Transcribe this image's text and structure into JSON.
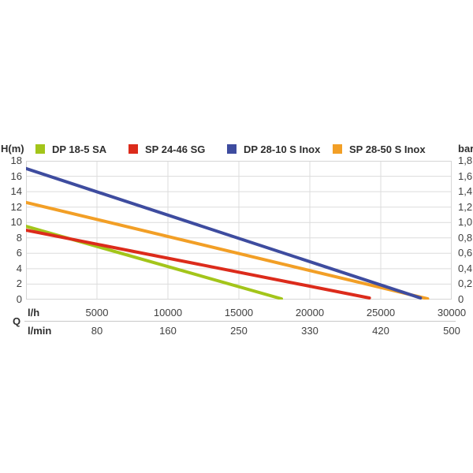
{
  "theme": {
    "background": "#ffffff",
    "grid_color": "#dcdcdc",
    "plot_border_color": "#d6d6d6",
    "divider_color": "#c8c8c8",
    "text_color": "#3f3f3f",
    "label_color": "#2e2e2e"
  },
  "chart_data": {
    "type": "line",
    "title": "",
    "legend_position": "top",
    "grid": true,
    "left_axis_unit": "H(m)",
    "right_axis_unit": "bar",
    "x_axis": {
      "primary_unit": "l/h",
      "secondary_unit": "l/min",
      "corner_label": "Q",
      "min": 0,
      "max": 30000,
      "ticks": [
        {
          "value": 5000,
          "lh": "5000",
          "lmin": "80"
        },
        {
          "value": 10000,
          "lh": "10000",
          "lmin": "160"
        },
        {
          "value": 15000,
          "lh": "15000",
          "lmin": "250"
        },
        {
          "value": 20000,
          "lh": "20000",
          "lmin": "330"
        },
        {
          "value": 25000,
          "lh": "25000",
          "lmin": "420"
        },
        {
          "value": 30000,
          "lh": "30000",
          "lmin": "500"
        }
      ]
    },
    "y_axis_left": {
      "unit": "H(m)",
      "min": 0,
      "max": 18,
      "step": 2,
      "ticks": [
        {
          "label": "18",
          "value": 18
        },
        {
          "label": "16",
          "value": 16
        },
        {
          "label": "14",
          "value": 14
        },
        {
          "label": "12",
          "value": 12
        },
        {
          "label": "10",
          "value": 10
        },
        {
          "label": "8",
          "value": 8
        },
        {
          "label": "6",
          "value": 6
        },
        {
          "label": "4",
          "value": 4
        },
        {
          "label": "2",
          "value": 2
        },
        {
          "label": "0",
          "value": 0
        }
      ]
    },
    "y_axis_right": {
      "unit": "bar",
      "min": 0,
      "max": 1.8,
      "step": 0.2,
      "ticks": [
        {
          "label": "1,8",
          "value": 18
        },
        {
          "label": "1,6",
          "value": 16
        },
        {
          "label": "1,4",
          "value": 14
        },
        {
          "label": "1,2",
          "value": 12
        },
        {
          "label": "1,0",
          "value": 10
        },
        {
          "label": "0,8",
          "value": 8
        },
        {
          "label": "0,6",
          "value": 6
        },
        {
          "label": "0,4",
          "value": 4
        },
        {
          "label": "0,2",
          "value": 2
        },
        {
          "label": "0",
          "value": 0
        }
      ]
    },
    "series": [
      {
        "name": "DP 18-5 SA",
        "color": "#a3c51a",
        "points": [
          [
            0,
            9.5
          ],
          [
            18000,
            0.1
          ]
        ]
      },
      {
        "name": "SP 24-46 SG",
        "color": "#dc2b1b",
        "points": [
          [
            0,
            9.0
          ],
          [
            24200,
            0.2
          ]
        ]
      },
      {
        "name": "SP 28-50 S Inox",
        "color": "#f29f26",
        "points": [
          [
            0,
            12.6
          ],
          [
            28300,
            0.1
          ]
        ]
      },
      {
        "name": "DP 28-10 S Inox",
        "color": "#3e4c9f",
        "points": [
          [
            0,
            17.0
          ],
          [
            27800,
            0.2
          ]
        ]
      }
    ],
    "legend_order": [
      "DP 18-5 SA",
      "SP 24-46 SG",
      "DP 28-10 S Inox",
      "SP 28-50 S Inox"
    ]
  }
}
